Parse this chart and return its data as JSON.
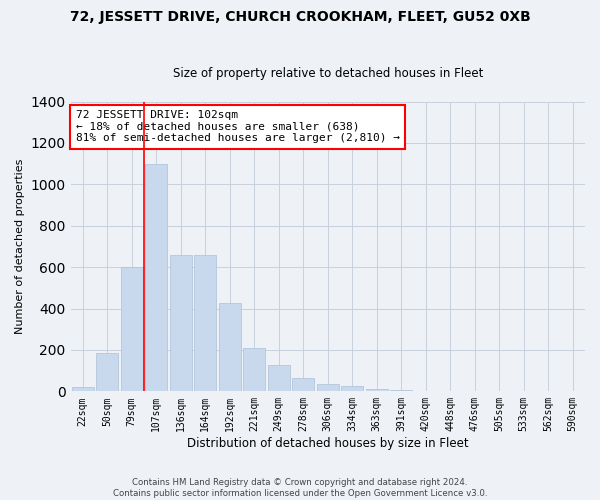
{
  "title": "72, JESSETT DRIVE, CHURCH CROOKHAM, FLEET, GU52 0XB",
  "subtitle": "Size of property relative to detached houses in Fleet",
  "xlabel": "Distribution of detached houses by size in Fleet",
  "ylabel": "Number of detached properties",
  "footer_line1": "Contains HM Land Registry data © Crown copyright and database right 2024.",
  "footer_line2": "Contains public sector information licensed under the Open Government Licence v3.0.",
  "categories": [
    "22sqm",
    "50sqm",
    "79sqm",
    "107sqm",
    "136sqm",
    "164sqm",
    "192sqm",
    "221sqm",
    "249sqm",
    "278sqm",
    "306sqm",
    "334sqm",
    "363sqm",
    "391sqm",
    "420sqm",
    "448sqm",
    "476sqm",
    "505sqm",
    "533sqm",
    "562sqm",
    "590sqm"
  ],
  "values": [
    20,
    185,
    600,
    1100,
    660,
    660,
    425,
    210,
    125,
    65,
    35,
    28,
    10,
    5,
    3,
    2,
    1,
    1,
    1,
    1,
    0
  ],
  "bar_color": "#c8d9ed",
  "bar_edge_color": "#aac0d8",
  "grid_color": "#c8d0dc",
  "background_color": "#eef2f7",
  "annotation_text": "72 JESSETT DRIVE: 102sqm\n← 18% of detached houses are smaller (638)\n81% of semi-detached houses are larger (2,810) →",
  "annotation_box_color": "white",
  "annotation_box_edge_color": "red",
  "red_line_x": 2.5,
  "ylim": [
    0,
    1400
  ],
  "title_fontsize": 10,
  "subtitle_fontsize": 8.5,
  "axis_label_fontsize": 8.5,
  "tick_fontsize": 7,
  "annotation_fontsize": 8,
  "ylabel_fontsize": 8
}
